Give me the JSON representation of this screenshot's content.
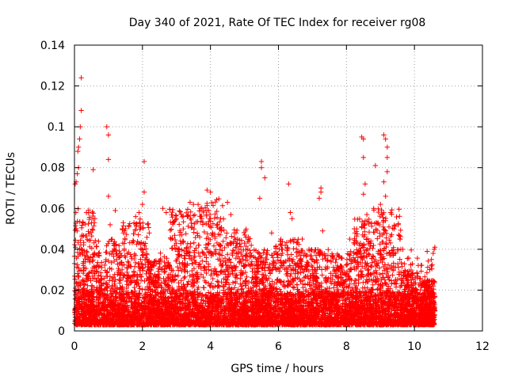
{
  "chart_data": {
    "type": "scatter",
    "title": "Day 340 of 2021, Rate Of TEC Index for receiver rg08",
    "xlabel": "GPS time / hours",
    "ylabel": "ROTI / TECUs",
    "xlim": [
      0,
      12
    ],
    "ylim": [
      0,
      0.14
    ],
    "grid": true,
    "marker": "+",
    "colors": {
      "series": "#ff0000",
      "grid": "#a0a0a0",
      "axis": "#000000"
    },
    "x_ticks": [
      0,
      2,
      4,
      6,
      8,
      10,
      12
    ],
    "x_tick_labels": [
      "0",
      "2",
      "4",
      "6",
      "8",
      "10",
      "12"
    ],
    "y_ticks": [
      0,
      0.02,
      0.04,
      0.06,
      0.08,
      0.1,
      0.12,
      0.14
    ],
    "y_tick_labels": [
      "0",
      "0.02",
      "0.04",
      "0.06",
      "0.08",
      "0.1",
      "0.12",
      "0.14"
    ],
    "series": [
      {
        "name": "ROTI",
        "notable_points": [
          [
            0.0,
            0.033
          ],
          [
            0.02,
            0.072
          ],
          [
            0.05,
            0.073
          ],
          [
            0.08,
            0.077
          ],
          [
            0.12,
            0.08
          ],
          [
            0.1,
            0.088
          ],
          [
            0.12,
            0.09
          ],
          [
            0.15,
            0.094
          ],
          [
            0.17,
            0.1
          ],
          [
            0.2,
            0.124
          ],
          [
            0.2,
            0.108
          ],
          [
            0.55,
            0.079
          ],
          [
            0.5,
            0.053
          ],
          [
            0.6,
            0.055
          ],
          [
            0.95,
            0.1
          ],
          [
            1.0,
            0.096
          ],
          [
            1.0,
            0.084
          ],
          [
            1.0,
            0.066
          ],
          [
            1.05,
            0.052
          ],
          [
            1.2,
            0.059
          ],
          [
            1.35,
            0.038
          ],
          [
            1.5,
            0.036
          ],
          [
            1.8,
            0.056
          ],
          [
            1.9,
            0.058
          ],
          [
            2.0,
            0.062
          ],
          [
            2.05,
            0.068
          ],
          [
            2.05,
            0.083
          ],
          [
            2.2,
            0.048
          ],
          [
            2.6,
            0.06
          ],
          [
            2.7,
            0.058
          ],
          [
            2.9,
            0.053
          ],
          [
            3.0,
            0.055
          ],
          [
            3.2,
            0.05
          ],
          [
            3.4,
            0.063
          ],
          [
            3.5,
            0.062
          ],
          [
            3.7,
            0.06
          ],
          [
            3.9,
            0.069
          ],
          [
            4.0,
            0.068
          ],
          [
            3.95,
            0.059
          ],
          [
            4.0,
            0.055
          ],
          [
            4.3,
            0.055
          ],
          [
            4.5,
            0.063
          ],
          [
            4.6,
            0.057
          ],
          [
            4.8,
            0.045
          ],
          [
            5.0,
            0.043
          ],
          [
            5.2,
            0.042
          ],
          [
            5.5,
            0.083
          ],
          [
            5.5,
            0.08
          ],
          [
            5.45,
            0.065
          ],
          [
            5.6,
            0.075
          ],
          [
            5.8,
            0.048
          ],
          [
            6.1,
            0.042
          ],
          [
            6.3,
            0.072
          ],
          [
            6.35,
            0.058
          ],
          [
            6.4,
            0.055
          ],
          [
            6.7,
            0.045
          ],
          [
            6.9,
            0.04
          ],
          [
            7.0,
            0.03
          ],
          [
            7.25,
            0.07
          ],
          [
            7.25,
            0.068
          ],
          [
            7.2,
            0.065
          ],
          [
            7.3,
            0.049
          ],
          [
            7.7,
            0.035
          ],
          [
            7.9,
            0.025
          ],
          [
            8.1,
            0.045
          ],
          [
            8.3,
            0.05
          ],
          [
            8.45,
            0.095
          ],
          [
            8.5,
            0.094
          ],
          [
            8.5,
            0.085
          ],
          [
            8.55,
            0.072
          ],
          [
            8.5,
            0.067
          ],
          [
            8.6,
            0.057
          ],
          [
            8.8,
            0.06
          ],
          [
            8.85,
            0.081
          ],
          [
            9.0,
            0.062
          ],
          [
            9.1,
            0.096
          ],
          [
            9.15,
            0.094
          ],
          [
            9.2,
            0.09
          ],
          [
            9.2,
            0.085
          ],
          [
            9.2,
            0.078
          ],
          [
            9.1,
            0.073
          ],
          [
            9.15,
            0.066
          ],
          [
            9.1,
            0.048
          ],
          [
            9.3,
            0.058
          ],
          [
            9.4,
            0.05
          ],
          [
            9.6,
            0.04
          ],
          [
            9.9,
            0.025
          ],
          [
            10.3,
            0.022
          ],
          [
            10.45,
            0.03
          ],
          [
            10.5,
            0.035
          ],
          [
            10.55,
            0.038
          ],
          [
            10.58,
            0.04
          ],
          [
            10.6,
            0.041
          ]
        ],
        "cluster_windows": [
          [
            0.0,
            0.6,
            0.06
          ],
          [
            0.6,
            1.4,
            0.045
          ],
          [
            1.4,
            2.2,
            0.055
          ],
          [
            2.2,
            2.8,
            0.035
          ],
          [
            2.8,
            3.6,
            0.06
          ],
          [
            3.6,
            4.4,
            0.065
          ],
          [
            4.4,
            5.2,
            0.05
          ],
          [
            5.2,
            5.8,
            0.04
          ],
          [
            5.8,
            6.6,
            0.045
          ],
          [
            6.6,
            7.4,
            0.04
          ],
          [
            7.4,
            8.2,
            0.038
          ],
          [
            8.2,
            8.8,
            0.055
          ],
          [
            8.8,
            9.6,
            0.06
          ],
          [
            9.6,
            10.2,
            0.03
          ],
          [
            10.2,
            10.6,
            0.025
          ]
        ],
        "x_range": [
          0.0,
          10.6
        ],
        "typical_max": 0.04,
        "baseline": 0.003
      }
    ]
  }
}
